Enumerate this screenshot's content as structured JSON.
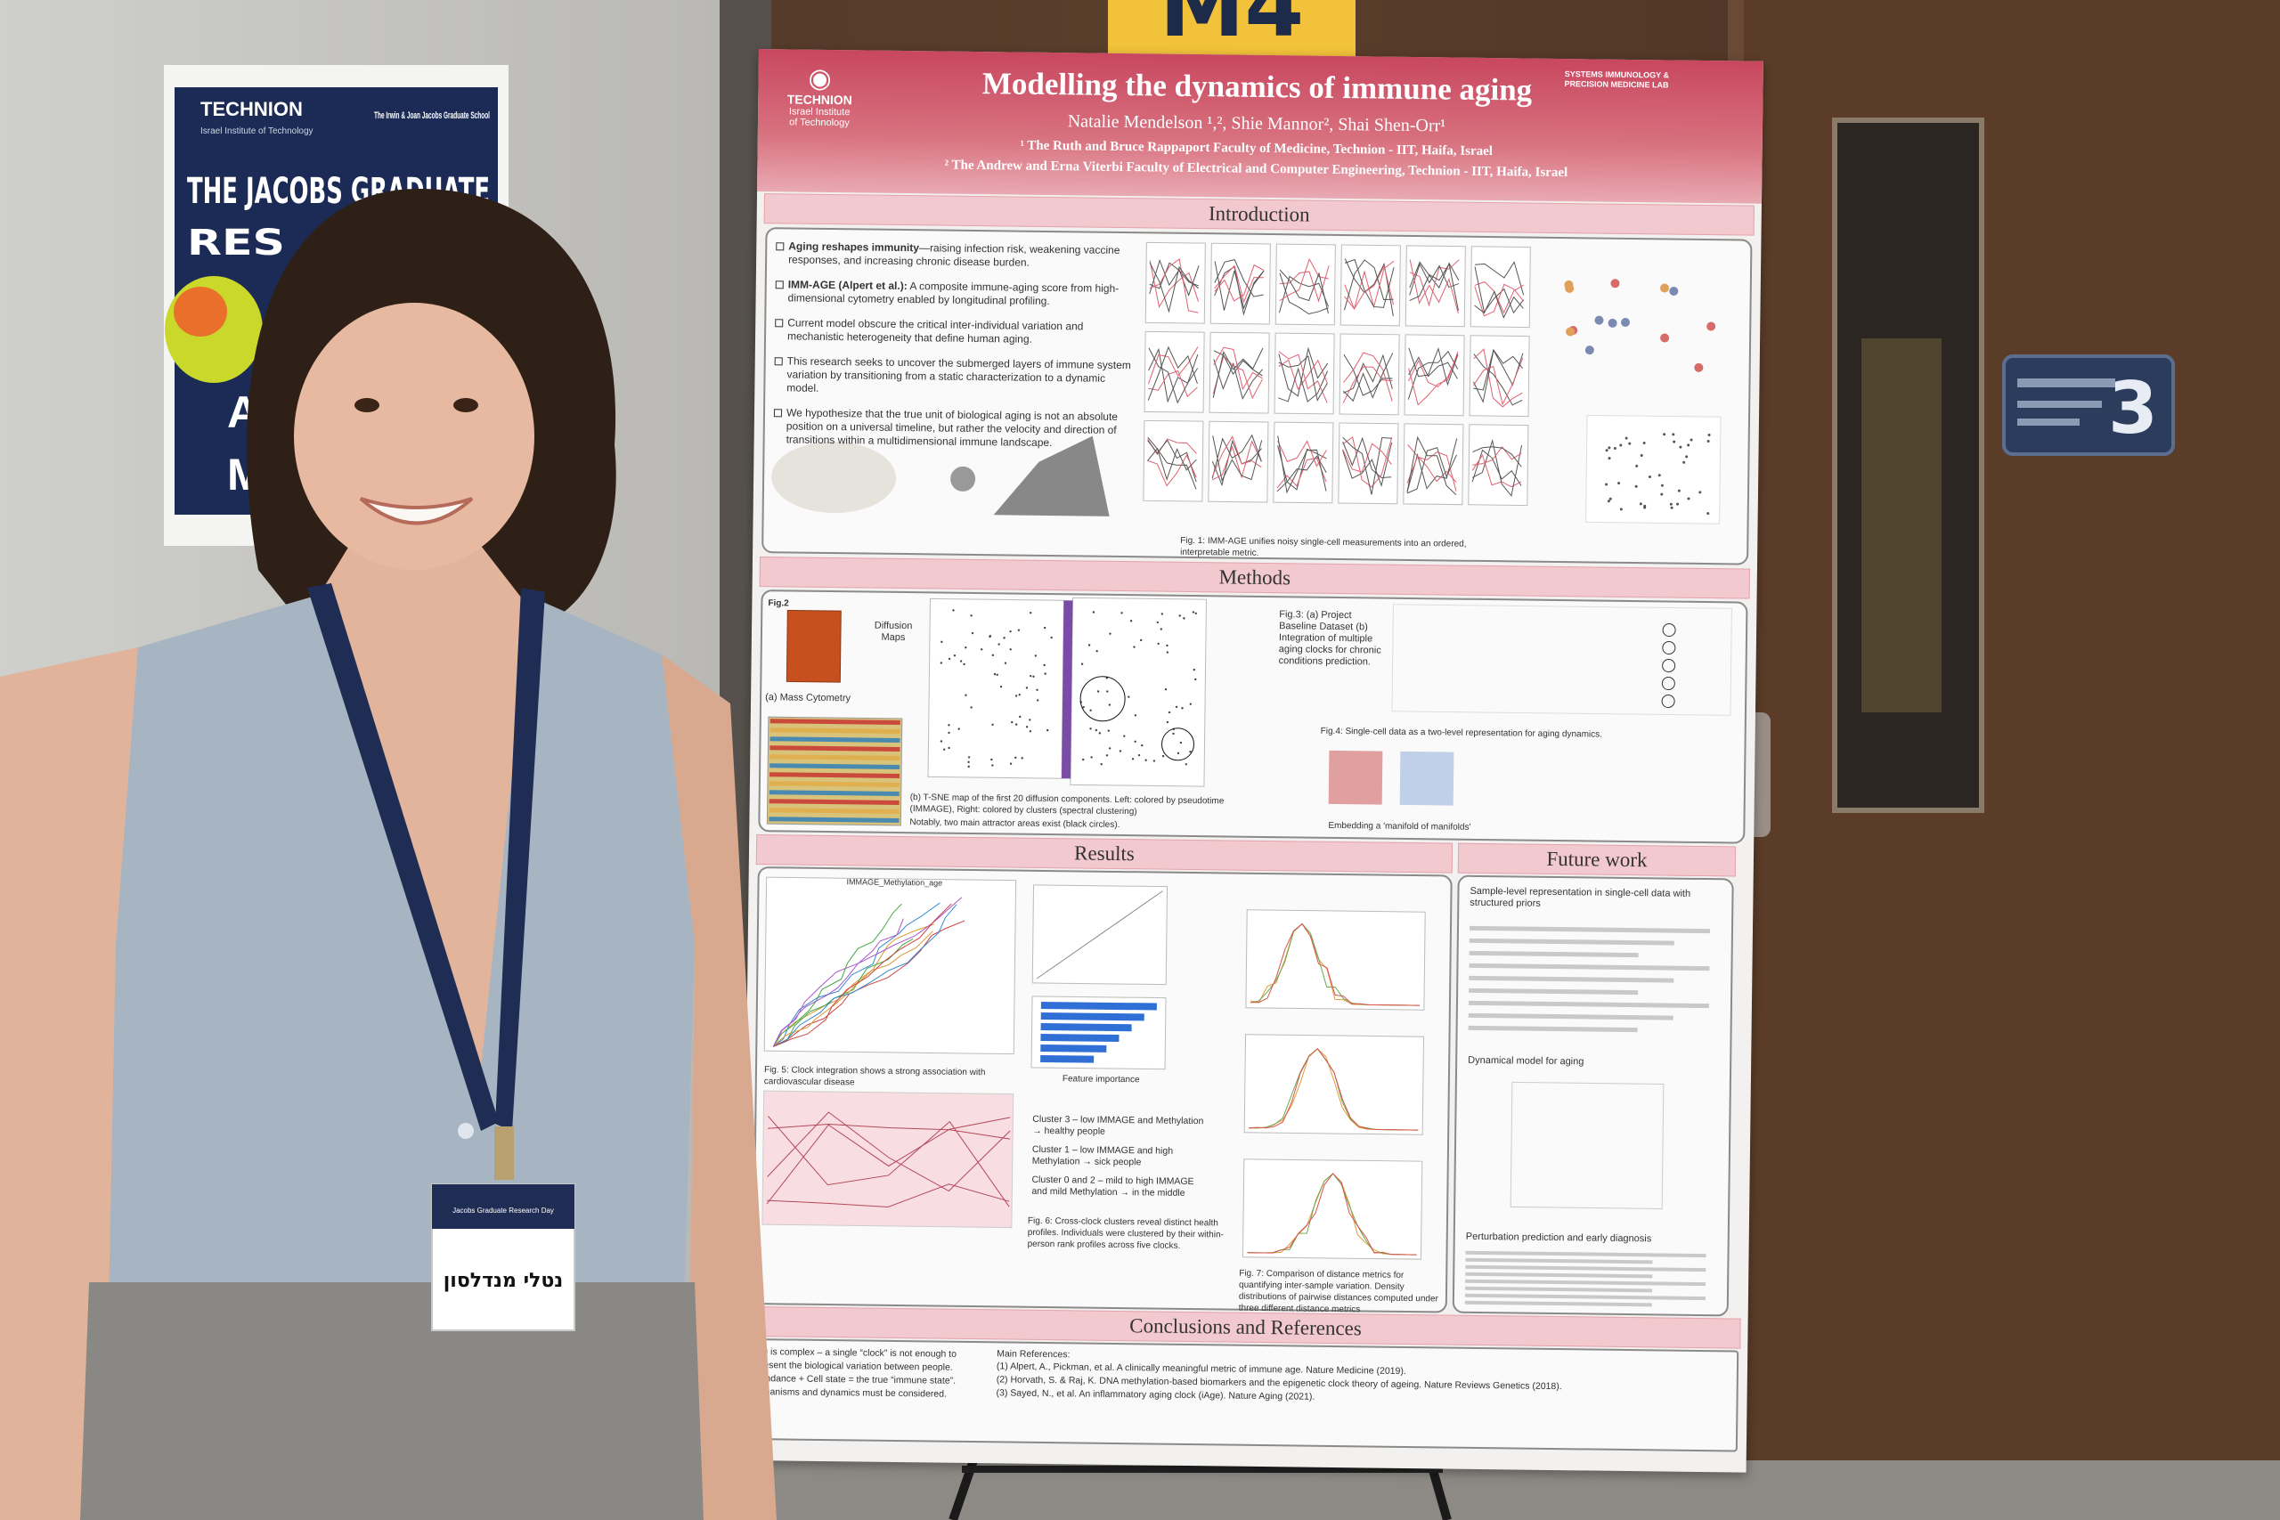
{
  "event_sign": {
    "label": "M4"
  },
  "wall_poster": {
    "logo": "TECHNION",
    "logo_sub": "Israel Institute of Technology",
    "school": "The Irwin & Joan Jacobs Graduate School",
    "headline": [
      "THE JACOBS GRADUATE",
      "RES"
    ],
    "fragments": [
      "A",
      "M"
    ]
  },
  "poster": {
    "logo": [
      "TECHNION",
      "Israel Institute",
      "of Technology"
    ],
    "lab": "SYSTEMS IMMUNOLOGY & PRECISION MEDICINE LAB",
    "title": "Modelling the dynamics of immune aging",
    "authors": "Natalie Mendelson ¹,², Shie Mannor², Shai Shen-Orr¹",
    "affiliations": [
      "¹ The Ruth and Bruce Rappaport Faculty of Medicine, Technion - IIT, Haifa, Israel",
      "² The Andrew and Erna Viterbi Faculty of Electrical and Computer Engineering, Technion - IIT, Haifa, Israel"
    ],
    "introduction": {
      "heading": "Introduction",
      "bullets": [
        {
          "lead": "Aging reshapes immunity",
          "text": "—raising infection risk, weakening vaccine responses, and increasing chronic disease burden."
        },
        {
          "lead": "IMM-AGE (Alpert et al.):",
          "text": " A composite immune-aging score from high-dimensional cytometry enabled by longitudinal profiling."
        },
        {
          "text": "Current model obscure the critical inter-individual variation and mechanistic heterogeneity that define human aging."
        },
        {
          "text": "This research seeks to uncover the submerged layers of immune system variation by transitioning from a static characterization to a dynamic model."
        },
        {
          "text": "We hypothesize that the true unit of biological aging is not an absolute position on a universal timeline, but rather the velocity and direction of transitions within a multidimensional immune landscape."
        }
      ],
      "figure_caption": "Fig. 1: IMM-AGE unifies noisy single-cell measurements into an ordered, interpretable metric."
    },
    "methods": {
      "heading": "Methods",
      "fig2": "Fig.2",
      "diffusion": "Diffusion Maps",
      "mass_cytometry": "(a) Mass Cytometry",
      "tsne_caption": "(b) T-SNE map of the first 20 diffusion components. Left: colored by pseudotime (IMMAGE), Right: colored by clusters (spectral clustering)",
      "attractor_note": "Notably, two main attractor areas exist (black circles).",
      "fig3_caption": "Fig.3: (a) Project Baseline Dataset (b) Integration of multiple aging clocks for chronic conditions prediction.",
      "fig4_caption": "Fig.4: Single-cell data as a two-level representation for aging dynamics.",
      "embedding": "Embedding a 'manifold of manifolds'"
    },
    "results": {
      "heading": "Results",
      "plot_title": "IMMAGE_Methylation_age",
      "fig5_caption": "Fig. 5: Clock integration shows a strong association with cardiovascular disease",
      "feature_importance": "Feature importance",
      "clusters": [
        "Cluster 3 – low IMMAGE and Methylation → healthy people",
        "Cluster 1 – low IMMAGE and high Methylation → sick people",
        "Cluster 0 and 2 – mild to high IMMAGE and mild Methylation → in the middle"
      ],
      "fig6_caption": "Fig. 6: Cross-clock clusters reveal distinct health profiles. Individuals were clustered by their within-person rank profiles across five clocks.",
      "fig7_caption": "Fig. 7: Comparison of distance metrics for quantifying inter-sample variation. Density distributions of pairwise distances computed under three different distance metrics"
    },
    "future_work": {
      "heading": "Future work",
      "items": [
        "Sample-level representation in single-cell data with structured priors",
        "Dynamical model for aging",
        "Perturbation prediction and early diagnosis"
      ]
    },
    "conclusions": {
      "heading": "Conclusions and References",
      "lines": [
        "ing is complex – a single “clock” is not enough to",
        "present the biological variation between people.",
        "bundance + Cell state = the true “immune state”.",
        "echanisms and dynamics must be considered."
      ],
      "references_heading": "Main References:",
      "references": [
        "(1) Alpert, A., Pickman, et al. A clinically meaningful metric of immune age. Nature Medicine (2019).",
        "(2) Horvath, S. & Raj, K. DNA methylation-based biomarkers and the epigenetic clock theory of ageing. Nature Reviews Genetics (2018).",
        "(3) Sayed, N., et al. An inflammatory aging clock (iAge). Nature Aging (2021)."
      ]
    }
  },
  "badge": {
    "event": "Jacobs Graduate Research Day",
    "name": "נטלי מנדלסון"
  },
  "door_sign": {
    "number": "3"
  }
}
